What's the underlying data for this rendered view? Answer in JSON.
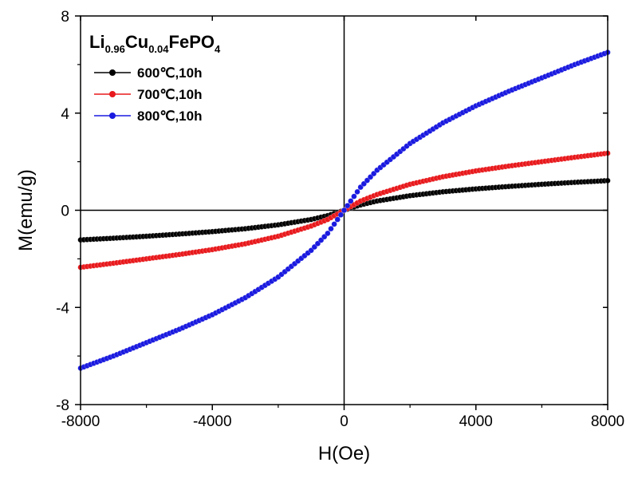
{
  "chart_data": {
    "type": "scatter",
    "title": "",
    "legend_title": {
      "parts": [
        "Li",
        "0.96",
        "Cu",
        "0.04",
        "FePO",
        "4"
      ]
    },
    "xlabel": "H(Oe)",
    "ylabel": "M(emu/g)",
    "xlim": [
      -8000,
      8000
    ],
    "ylim": [
      -8,
      8
    ],
    "xticks": [
      -8000,
      -4000,
      0,
      4000,
      8000
    ],
    "yticks": [
      -8,
      -4,
      0,
      4,
      8
    ],
    "xtick_labels": [
      "-8000",
      "-4000",
      "0",
      "4000",
      "8000"
    ],
    "ytick_labels": [
      "-8",
      "-4",
      "0",
      "4",
      "8"
    ],
    "legend_position": "top-left",
    "zero_lines": true,
    "series": [
      {
        "name": "600℃,10h",
        "color": "#000000",
        "x": [
          -8000,
          -7000,
          -6000,
          -5000,
          -4000,
          -3000,
          -2000,
          -1000,
          -500,
          0,
          500,
          1000,
          2000,
          3000,
          4000,
          5000,
          6000,
          7000,
          8000
        ],
        "y": [
          -1.22,
          -1.15,
          -1.07,
          -0.98,
          -0.88,
          -0.76,
          -0.6,
          -0.38,
          -0.22,
          0.0,
          0.22,
          0.38,
          0.6,
          0.76,
          0.88,
          0.98,
          1.07,
          1.15,
          1.22
        ]
      },
      {
        "name": "700℃,10h",
        "color": "#e8191c",
        "x": [
          -8000,
          -7000,
          -6000,
          -5000,
          -4000,
          -3000,
          -2000,
          -1000,
          -500,
          0,
          500,
          1000,
          2000,
          3000,
          4000,
          5000,
          6000,
          7000,
          8000
        ],
        "y": [
          -2.35,
          -2.18,
          -2.0,
          -1.82,
          -1.62,
          -1.38,
          -1.07,
          -0.65,
          -0.38,
          0.0,
          0.38,
          0.65,
          1.07,
          1.38,
          1.62,
          1.82,
          2.0,
          2.18,
          2.35
        ]
      },
      {
        "name": "800℃,10h",
        "color": "#1a1ae0",
        "x": [
          -8000,
          -7000,
          -6000,
          -5000,
          -4000,
          -3000,
          -2000,
          -1000,
          -500,
          0,
          500,
          1000,
          2000,
          3000,
          4000,
          5000,
          6000,
          7000,
          8000
        ],
        "y": [
          -6.5,
          -6.0,
          -5.45,
          -4.9,
          -4.3,
          -3.6,
          -2.75,
          -1.65,
          -0.95,
          0.0,
          0.95,
          1.65,
          2.75,
          3.6,
          4.3,
          4.9,
          5.45,
          6.0,
          6.5
        ]
      }
    ]
  }
}
